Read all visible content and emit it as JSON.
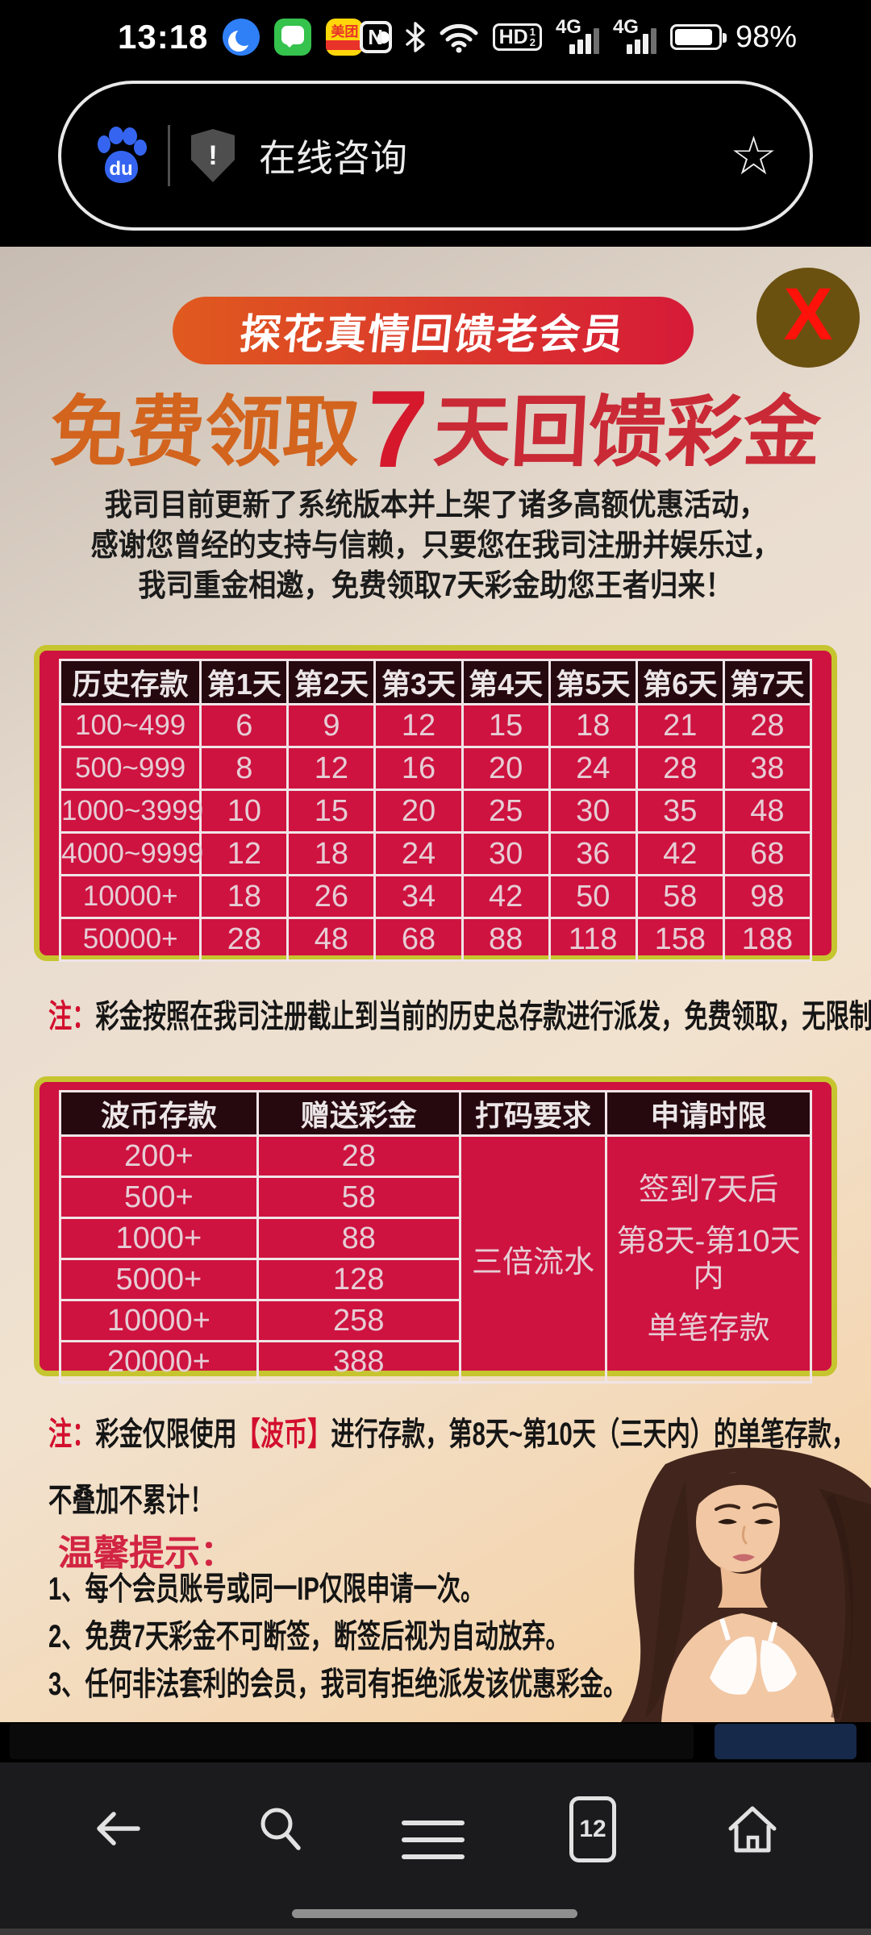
{
  "status_bar": {
    "time": "13:18",
    "meituan_label": "美团",
    "nfc_label": "N",
    "hd_label": "HD",
    "hd_sup": "1",
    "hd_sub": "2",
    "network_label": "4G",
    "battery_percent": "98%"
  },
  "search": {
    "query": "在线咨询",
    "shield_mark": "!",
    "star_glyph": "☆"
  },
  "promo": {
    "close_label": "X",
    "ribbon": "探花真情回馈老会员",
    "title_prefix": "免费领取",
    "title_number": "7",
    "title_suffix": "天回馈彩金",
    "intro_lines": [
      "我司目前更新了系统版本并上架了诸多高额优惠活动，",
      "感谢您曾经的支持与信赖，只要您在我司注册并娱乐过，",
      "我司重金相邀，免费领取7天彩金助您王者归来！"
    ]
  },
  "table1": {
    "headers": [
      "历史存款",
      "第1天",
      "第2天",
      "第3天",
      "第4天",
      "第5天",
      "第6天",
      "第7天"
    ],
    "rows": [
      {
        "range": "100~499",
        "values": [
          "6",
          "9",
          "12",
          "15",
          "18",
          "21",
          "28"
        ]
      },
      {
        "range": "500~999",
        "values": [
          "8",
          "12",
          "16",
          "20",
          "24",
          "28",
          "38"
        ]
      },
      {
        "range": "1000~3999",
        "values": [
          "10",
          "15",
          "20",
          "25",
          "30",
          "35",
          "48"
        ]
      },
      {
        "range": "4000~9999",
        "values": [
          "12",
          "18",
          "24",
          "30",
          "36",
          "42",
          "68"
        ]
      },
      {
        "range": "10000+",
        "values": [
          "18",
          "26",
          "34",
          "42",
          "50",
          "58",
          "98"
        ]
      },
      {
        "range": "50000+",
        "values": [
          "28",
          "48",
          "68",
          "88",
          "118",
          "158",
          "188"
        ]
      }
    ]
  },
  "note1": {
    "label": "注：",
    "text": "彩金按照在我司注册截止到当前的历史总存款进行派发，免费领取，无限制！"
  },
  "table2": {
    "headers": [
      "波币存款",
      "赠送彩金",
      "打码要求",
      "申请时限"
    ],
    "rows": [
      [
        "200+",
        "28"
      ],
      [
        "500+",
        "58"
      ],
      [
        "1000+",
        "88"
      ],
      [
        "5000+",
        "128"
      ],
      [
        "10000+",
        "258"
      ],
      [
        "20000+",
        "388"
      ]
    ],
    "wagering": "三倍流水",
    "apply_window_lines": [
      "签到7天后",
      "第8天-第10天内",
      "单笔存款"
    ]
  },
  "note2": {
    "label": "注：",
    "part1": "彩金仅限使用",
    "highlight": "【波币】",
    "part2": "进行存款，第8天~第10天（三天内）的单笔存款，",
    "line2": "不叠加不累计！"
  },
  "tips": {
    "title": "温馨提示：",
    "items": [
      "1、每个会员账号或同一IP仅限申请一次。",
      "2、免费7天彩金不可断签，断签后视为自动放弃。",
      "3、任何非法套利的会员，我司有拒绝派发该优惠彩金。"
    ]
  },
  "nav": {
    "tab_count": "12"
  },
  "colors": {
    "table_bg": "#ce1340",
    "table_border": "#c6c52f",
    "table_header_bg": "#26090f",
    "accent_red": "#d30f2e",
    "title_orange": "#d2641e",
    "title_red": "#cf1f30",
    "ribbon_gradient_start": "#e05a1e",
    "ribbon_gradient_end": "#d61a38",
    "close_bg": "#6b5110",
    "close_x": "#fe120a"
  }
}
